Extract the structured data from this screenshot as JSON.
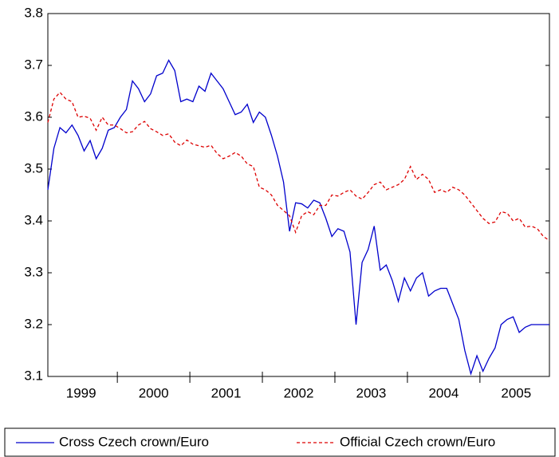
{
  "chart_data": {
    "type": "line",
    "categories": [
      null,
      null,
      null,
      null,
      null,
      null,
      "1999",
      null,
      null,
      null,
      null,
      null,
      null,
      null,
      null,
      null,
      null,
      null,
      "2000",
      null,
      null,
      null,
      null,
      null,
      null,
      null,
      null,
      null,
      null,
      null,
      "2001",
      null,
      null,
      null,
      null,
      null,
      null,
      null,
      null,
      null,
      null,
      null,
      "2002",
      null,
      null,
      null,
      null,
      null,
      null,
      null,
      null,
      null,
      null,
      null,
      "2003",
      null,
      null,
      null,
      null,
      null,
      null,
      null,
      null,
      null,
      null,
      null,
      "2004",
      null,
      null,
      null,
      null,
      null,
      null,
      null,
      null,
      null,
      null,
      null,
      "2005",
      null,
      null,
      null,
      null,
      null
    ],
    "series": [
      {
        "name": "Cross Czech crown/Euro",
        "color": "#0000cc",
        "dash": false,
        "values": [
          3.46,
          3.54,
          3.58,
          3.57,
          3.585,
          3.565,
          3.535,
          3.555,
          3.52,
          3.54,
          3.575,
          3.58,
          3.6,
          3.615,
          3.67,
          3.655,
          3.63,
          3.645,
          3.68,
          3.685,
          3.71,
          3.69,
          3.63,
          3.635,
          3.63,
          3.66,
          3.65,
          3.685,
          3.67,
          3.655,
          3.63,
          3.605,
          3.61,
          3.625,
          3.59,
          3.61,
          3.6,
          3.565,
          3.525,
          3.475,
          3.38,
          3.435,
          3.433,
          3.425,
          3.44,
          3.435,
          3.405,
          3.37,
          3.385,
          3.38,
          3.34,
          3.2,
          3.32,
          3.345,
          3.39,
          3.305,
          3.315,
          3.285,
          3.245,
          3.29,
          3.265,
          3.29,
          3.3,
          3.255,
          3.265,
          3.27,
          3.27,
          3.24,
          3.21,
          3.15,
          3.105,
          3.14,
          3.11,
          3.135,
          3.155,
          3.2,
          3.21,
          3.215,
          3.185,
          3.195,
          3.2,
          3.2,
          3.2,
          3.2
        ]
      },
      {
        "name": "Official Czech crown/Euro",
        "color": "#dd0000",
        "dash": true,
        "values": [
          3.59,
          3.635,
          3.648,
          3.635,
          3.63,
          3.6,
          3.602,
          3.598,
          3.575,
          3.6,
          3.585,
          3.585,
          3.578,
          3.57,
          3.572,
          3.585,
          3.592,
          3.578,
          3.572,
          3.565,
          3.568,
          3.552,
          3.545,
          3.556,
          3.548,
          3.545,
          3.542,
          3.546,
          3.53,
          3.52,
          3.525,
          3.532,
          3.525,
          3.51,
          3.505,
          3.465,
          3.46,
          3.45,
          3.43,
          3.42,
          3.41,
          3.378,
          3.41,
          3.418,
          3.412,
          3.43,
          3.43,
          3.45,
          3.448,
          3.455,
          3.46,
          3.448,
          3.442,
          3.455,
          3.47,
          3.475,
          3.46,
          3.465,
          3.47,
          3.48,
          3.505,
          3.48,
          3.49,
          3.48,
          3.455,
          3.46,
          3.455,
          3.465,
          3.46,
          3.45,
          3.435,
          3.42,
          3.405,
          3.395,
          3.398,
          3.418,
          3.415,
          3.4,
          3.405,
          3.388,
          3.39,
          3.385,
          3.37,
          3.362
        ]
      }
    ],
    "ylim": [
      3.1,
      3.8
    ],
    "yticks": [
      3.1,
      3.2,
      3.3,
      3.4,
      3.5,
      3.6,
      3.7,
      3.8
    ],
    "grid": false,
    "legend": "bottom"
  }
}
